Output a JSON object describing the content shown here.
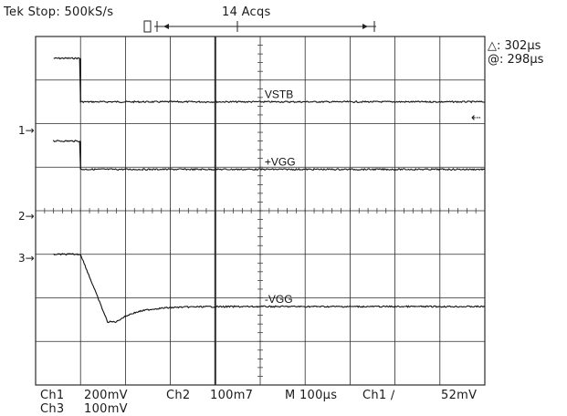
{
  "header": {
    "status": "Tek Stop: 500kS/s",
    "acqs": "14 Acqs"
  },
  "measurements": {
    "delta": "△: 302µs",
    "at": "@: 298µs"
  },
  "trigger_marker": "⇠",
  "footer": {
    "row1": [
      {
        "key": "ch1_label",
        "text": "Ch1"
      },
      {
        "key": "ch1_scale",
        "text": "200mV"
      },
      {
        "key": "ch2_label",
        "text": "Ch2"
      },
      {
        "key": "ch2_scale",
        "text": "100m7"
      },
      {
        "key": "timebase",
        "text": "M  100µs"
      },
      {
        "key": "trig_source",
        "text": "Ch1 ∕"
      },
      {
        "key": "trig_level",
        "text": "52mV"
      }
    ],
    "row2": [
      {
        "key": "ch3_label",
        "text": "Ch3"
      },
      {
        "key": "ch3_scale",
        "text": "100mV"
      }
    ]
  },
  "colors": {
    "trace": "#111111",
    "grid": "#2b2b2b",
    "background": "#ffffff"
  },
  "chart_data": {
    "type": "line",
    "xlim": [
      0,
      1000
    ],
    "xunit": "µs",
    "grid": true,
    "series": [
      {
        "name": "VSTB",
        "marker": "1",
        "before": 0.5,
        "after": 1.5,
        "step_at": 100,
        "kind": "step_up",
        "label": "VSTB"
      },
      {
        "name": "+VGG",
        "marker": "2",
        "before": 2.4,
        "after": 3.05,
        "step_at": 100,
        "kind": "step_up",
        "label": "+VGG"
      },
      {
        "name": "-VGG",
        "marker": "3",
        "before": 5.0,
        "after": 6.2,
        "dip": 6.55,
        "step_at": 100,
        "kind": "step_down",
        "label": "-VGG"
      }
    ]
  }
}
